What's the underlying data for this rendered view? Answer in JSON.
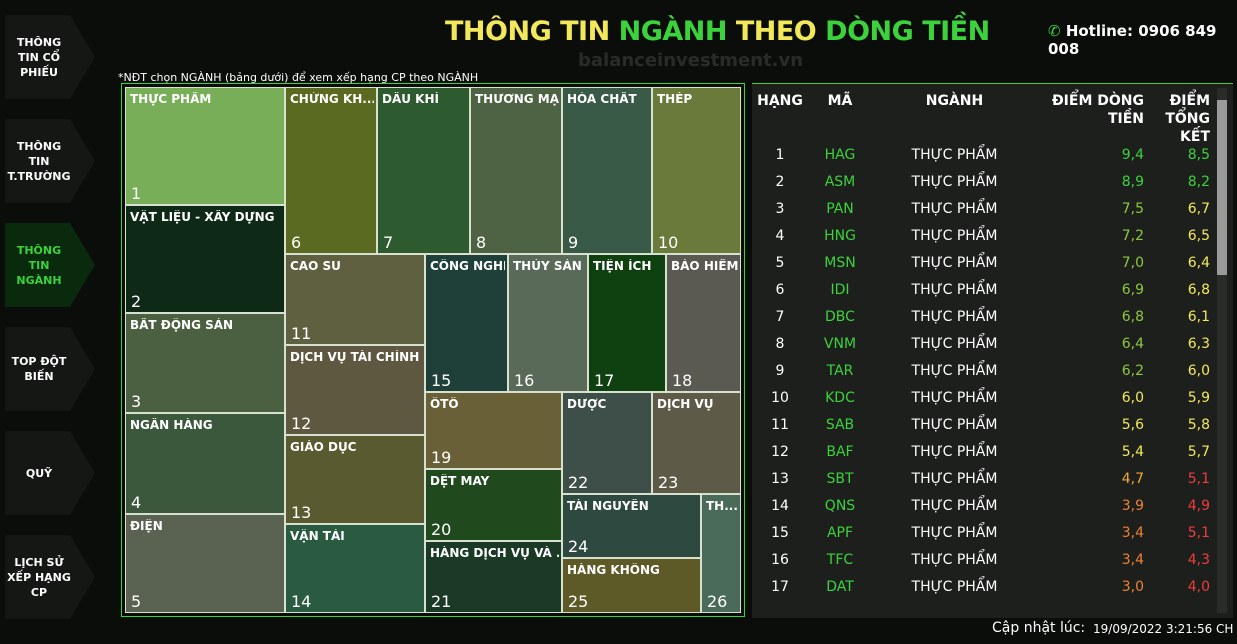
{
  "sidebar": [
    {
      "label": "THÔNG TIN CỔ PHIẾU",
      "active": false
    },
    {
      "label": "THÔNG TIN T.TRƯỜNG",
      "active": false
    },
    {
      "label": "THÔNG TIN NGÀNH",
      "active": true
    },
    {
      "label": "TOP ĐỘT BIẾN",
      "active": false
    },
    {
      "label": "QUỸ",
      "active": false
    },
    {
      "label": "LỊCH SỬ XẾP HẠNG CP",
      "active": false
    }
  ],
  "header": {
    "title_parts": [
      {
        "text": "THÔNG TIN ",
        "color": "#f2e85a"
      },
      {
        "text": "NGÀNH",
        "color": "#3cd23c"
      },
      {
        "text": " THEO ",
        "color": "#f2e85a"
      },
      {
        "text": "DÒNG TIỀN",
        "color": "#3cd23c"
      }
    ],
    "hotline": "Hotline: 0906 849 008",
    "watermark": "balanceinvestment.vn"
  },
  "note": "*NĐT chọn NGÀNH (bảng dưới) để xem xếp hạng CP theo NGÀNH",
  "treemap": [
    {
      "label": "THỰC PHẨM",
      "rank": 1,
      "color": "#78ae58"
    },
    {
      "label": "VẬT LIỆU - XÂY DỰNG",
      "rank": 2,
      "color": "#0e2a16"
    },
    {
      "label": "BẤT ĐỘNG SẢN",
      "rank": 3,
      "color": "#4a6040"
    },
    {
      "label": "NGÂN HÀNG",
      "rank": 4,
      "color": "#3c583c"
    },
    {
      "label": "ĐIỆN",
      "rank": 5,
      "color": "#5a6252"
    },
    {
      "label": "CHỨNG KH...",
      "rank": 6,
      "color": "#5a6a20"
    },
    {
      "label": "DẦU KHÍ",
      "rank": 7,
      "color": "#2e5a30"
    },
    {
      "label": "THƯƠNG MẠI",
      "rank": 8,
      "color": "#4e6244"
    },
    {
      "label": "HÓA CHẤT",
      "rank": 9,
      "color": "#3a5a48"
    },
    {
      "label": "THÉP",
      "rank": 10,
      "color": "#6a7a3a"
    },
    {
      "label": "CAO SU",
      "rank": 11,
      "color": "#5e6040"
    },
    {
      "label": "DỊCH VỤ TÀI CHÍNH",
      "rank": 12,
      "color": "#5e5840"
    },
    {
      "label": "GIÁO DỤC",
      "rank": 13,
      "color": "#5a5a30"
    },
    {
      "label": "VẬN TẢI",
      "rank": 14,
      "color": "#2a5a40"
    },
    {
      "label": "CÔNG NGHỆ",
      "rank": 15,
      "color": "#1e4038"
    },
    {
      "label": "THỦY SẢN",
      "rank": 16,
      "color": "#5a6a58"
    },
    {
      "label": "TIỆN ÍCH",
      "rank": 17,
      "color": "#0e4010"
    },
    {
      "label": "BẢO HIỂM",
      "rank": 18,
      "color": "#5a5a52"
    },
    {
      "label": "ÔTÔ",
      "rank": 19,
      "color": "#6a6038"
    },
    {
      "label": "DỆT MAY",
      "rank": 20,
      "color": "#204a1e"
    },
    {
      "label": "HÀNG DỊCH VỤ VÀ ...",
      "rank": 21,
      "color": "#1a3a26"
    },
    {
      "label": "DƯỢC",
      "rank": 22,
      "color": "#3e4e48"
    },
    {
      "label": "DỊCH VỤ",
      "rank": 23,
      "color": "#5e5a48"
    },
    {
      "label": "TÀI NGUYÊN",
      "rank": 24,
      "color": "#2e4a40"
    },
    {
      "label": "HÀNG KHÔNG",
      "rank": 25,
      "color": "#5e5a28"
    },
    {
      "label": "TH...",
      "rank": 26,
      "color": "#4a6a5a"
    }
  ],
  "table": {
    "headers": [
      "HẠNG",
      "MÃ",
      "NGÀNH",
      "ĐIỂM DÒNG TIỀN",
      "ĐIỂM TỔNG KẾT"
    ],
    "rows": [
      {
        "rank": 1,
        "code": "HAG",
        "sector": "THỰC PHẨM",
        "flow": "9,4",
        "flow_color": "#3cd23c",
        "total": "8,5",
        "total_color": "#3cd23c"
      },
      {
        "rank": 2,
        "code": "ASM",
        "sector": "THỰC PHẨM",
        "flow": "8,9",
        "flow_color": "#3cd23c",
        "total": "8,2",
        "total_color": "#3cd23c"
      },
      {
        "rank": 3,
        "code": "PAN",
        "sector": "THỰC PHẨM",
        "flow": "7,5",
        "flow_color": "#8cc83c",
        "total": "6,7",
        "total_color": "#f2e85a"
      },
      {
        "rank": 4,
        "code": "HNG",
        "sector": "THỰC PHẨM",
        "flow": "7,2",
        "flow_color": "#8cc83c",
        "total": "6,5",
        "total_color": "#f2e85a"
      },
      {
        "rank": 5,
        "code": "MSN",
        "sector": "THỰC PHẨM",
        "flow": "7,0",
        "flow_color": "#8cc83c",
        "total": "6,4",
        "total_color": "#f2e85a"
      },
      {
        "rank": 6,
        "code": "IDI",
        "sector": "THỰC PHẨM",
        "flow": "6,9",
        "flow_color": "#8cc83c",
        "total": "6,8",
        "total_color": "#f2e85a"
      },
      {
        "rank": 7,
        "code": "DBC",
        "sector": "THỰC PHẨM",
        "flow": "6,8",
        "flow_color": "#8cc83c",
        "total": "6,1",
        "total_color": "#f2e85a"
      },
      {
        "rank": 8,
        "code": "VNM",
        "sector": "THỰC PHẨM",
        "flow": "6,4",
        "flow_color": "#8cc83c",
        "total": "6,3",
        "total_color": "#f2e85a"
      },
      {
        "rank": 9,
        "code": "TAR",
        "sector": "THỰC PHẨM",
        "flow": "6,2",
        "flow_color": "#8cc83c",
        "total": "6,0",
        "total_color": "#f2e85a"
      },
      {
        "rank": 10,
        "code": "KDC",
        "sector": "THỰC PHẨM",
        "flow": "6,0",
        "flow_color": "#f2e85a",
        "total": "5,9",
        "total_color": "#f2e85a"
      },
      {
        "rank": 11,
        "code": "SAB",
        "sector": "THỰC PHẨM",
        "flow": "5,6",
        "flow_color": "#f2e85a",
        "total": "5,8",
        "total_color": "#f2e85a"
      },
      {
        "rank": 12,
        "code": "BAF",
        "sector": "THỰC PHẨM",
        "flow": "5,4",
        "flow_color": "#f2e85a",
        "total": "5,7",
        "total_color": "#f2e85a"
      },
      {
        "rank": 13,
        "code": "SBT",
        "sector": "THỰC PHẨM",
        "flow": "4,7",
        "flow_color": "#f0a830",
        "total": "5,1",
        "total_color": "#f03c3c"
      },
      {
        "rank": 14,
        "code": "QNS",
        "sector": "THỰC PHẨM",
        "flow": "3,9",
        "flow_color": "#f08030",
        "total": "4,9",
        "total_color": "#f03c3c"
      },
      {
        "rank": 15,
        "code": "APF",
        "sector": "THỰC PHẨM",
        "flow": "3,4",
        "flow_color": "#f08030",
        "total": "5,1",
        "total_color": "#f03c3c"
      },
      {
        "rank": 16,
        "code": "TFC",
        "sector": "THỰC PHẨM",
        "flow": "3,4",
        "flow_color": "#f08030",
        "total": "4,3",
        "total_color": "#f03c3c"
      },
      {
        "rank": 17,
        "code": "DAT",
        "sector": "THỰC PHẨM",
        "flow": "3,0",
        "flow_color": "#f08030",
        "total": "4,0",
        "total_color": "#f03c3c"
      }
    ]
  },
  "footer": {
    "label": "Cập nhật lúc:",
    "timestamp": "19/09/2022 3:21:56 CH"
  }
}
